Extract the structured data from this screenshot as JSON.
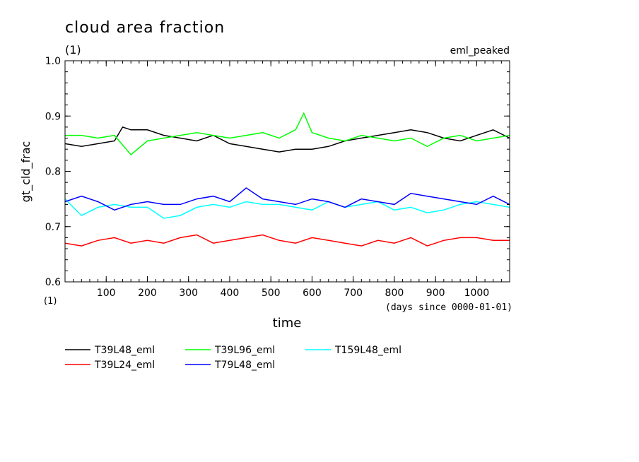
{
  "chart_data": {
    "type": "line",
    "title": "cloud area fraction",
    "subtitle_left": "(1)",
    "subtitle_right": "eml_peaked",
    "ylabel": "gt_cld_frac",
    "xlabel": "time",
    "x_unit": "(days since 0000-01-01)",
    "y_unit": "(1)",
    "xlim": [
      0,
      1080
    ],
    "ylim": [
      0.6,
      1.0
    ],
    "y_ticks": [
      0.6,
      0.7,
      0.8,
      0.9,
      1.0
    ],
    "y_tick_labels": [
      "0.6",
      "0.7",
      "0.8",
      "0.9",
      "1.0"
    ],
    "x_ticks": [
      100,
      200,
      300,
      400,
      500,
      600,
      700,
      800,
      900,
      1000
    ],
    "x_tick_labels": [
      "100",
      "200",
      "300",
      "400",
      "500",
      "600",
      "700",
      "800",
      "900",
      "1000"
    ],
    "legend_position": "bottom",
    "series": [
      {
        "name": "T39L48_eml",
        "color": "#000000",
        "x": [
          0,
          40,
          80,
          120,
          140,
          160,
          200,
          240,
          280,
          320,
          360,
          400,
          440,
          480,
          520,
          560,
          600,
          640,
          680,
          720,
          760,
          800,
          840,
          880,
          920,
          960,
          1000,
          1040,
          1080
        ],
        "y": [
          0.85,
          0.845,
          0.85,
          0.855,
          0.88,
          0.875,
          0.875,
          0.865,
          0.86,
          0.855,
          0.865,
          0.85,
          0.845,
          0.84,
          0.835,
          0.84,
          0.84,
          0.845,
          0.855,
          0.86,
          0.865,
          0.87,
          0.875,
          0.87,
          0.86,
          0.855,
          0.865,
          0.875,
          0.86
        ]
      },
      {
        "name": "T39L96_eml",
        "color": "#00ff00",
        "x": [
          0,
          40,
          80,
          120,
          160,
          200,
          240,
          280,
          320,
          360,
          400,
          440,
          480,
          520,
          560,
          580,
          600,
          640,
          680,
          720,
          760,
          800,
          840,
          880,
          920,
          960,
          1000,
          1040,
          1080
        ],
        "y": [
          0.865,
          0.865,
          0.86,
          0.865,
          0.83,
          0.855,
          0.86,
          0.865,
          0.87,
          0.865,
          0.86,
          0.865,
          0.87,
          0.86,
          0.875,
          0.905,
          0.87,
          0.86,
          0.855,
          0.865,
          0.86,
          0.855,
          0.86,
          0.845,
          0.86,
          0.865,
          0.855,
          0.86,
          0.865
        ]
      },
      {
        "name": "T159L48_eml",
        "color": "#00ffff",
        "x": [
          0,
          40,
          80,
          120,
          160,
          200,
          240,
          280,
          320,
          360,
          400,
          440,
          480,
          520,
          560,
          600,
          640,
          680,
          720,
          760,
          800,
          840,
          880,
          920,
          960,
          1000,
          1040,
          1080
        ],
        "y": [
          0.75,
          0.72,
          0.735,
          0.74,
          0.735,
          0.735,
          0.715,
          0.72,
          0.735,
          0.74,
          0.735,
          0.745,
          0.74,
          0.74,
          0.735,
          0.73,
          0.745,
          0.735,
          0.74,
          0.745,
          0.73,
          0.735,
          0.725,
          0.73,
          0.74,
          0.745,
          0.74,
          0.735
        ]
      },
      {
        "name": "T39L24_eml",
        "color": "#ff0000",
        "x": [
          0,
          40,
          80,
          120,
          160,
          200,
          240,
          280,
          320,
          360,
          400,
          440,
          480,
          520,
          560,
          600,
          640,
          680,
          720,
          760,
          800,
          840,
          880,
          920,
          960,
          1000,
          1040,
          1080
        ],
        "y": [
          0.67,
          0.665,
          0.675,
          0.68,
          0.67,
          0.675,
          0.67,
          0.68,
          0.685,
          0.67,
          0.675,
          0.68,
          0.685,
          0.675,
          0.67,
          0.68,
          0.675,
          0.67,
          0.665,
          0.675,
          0.67,
          0.68,
          0.665,
          0.675,
          0.68,
          0.68,
          0.675,
          0.675
        ]
      },
      {
        "name": "T79L48_eml",
        "color": "#0000ff",
        "x": [
          0,
          40,
          80,
          120,
          160,
          200,
          240,
          280,
          320,
          360,
          400,
          440,
          480,
          520,
          560,
          600,
          640,
          680,
          720,
          760,
          800,
          840,
          880,
          920,
          960,
          1000,
          1040,
          1080
        ],
        "y": [
          0.745,
          0.755,
          0.745,
          0.73,
          0.74,
          0.745,
          0.74,
          0.74,
          0.75,
          0.755,
          0.745,
          0.77,
          0.75,
          0.745,
          0.74,
          0.75,
          0.745,
          0.735,
          0.75,
          0.745,
          0.74,
          0.76,
          0.755,
          0.75,
          0.745,
          0.74,
          0.755,
          0.74
        ]
      }
    ]
  }
}
